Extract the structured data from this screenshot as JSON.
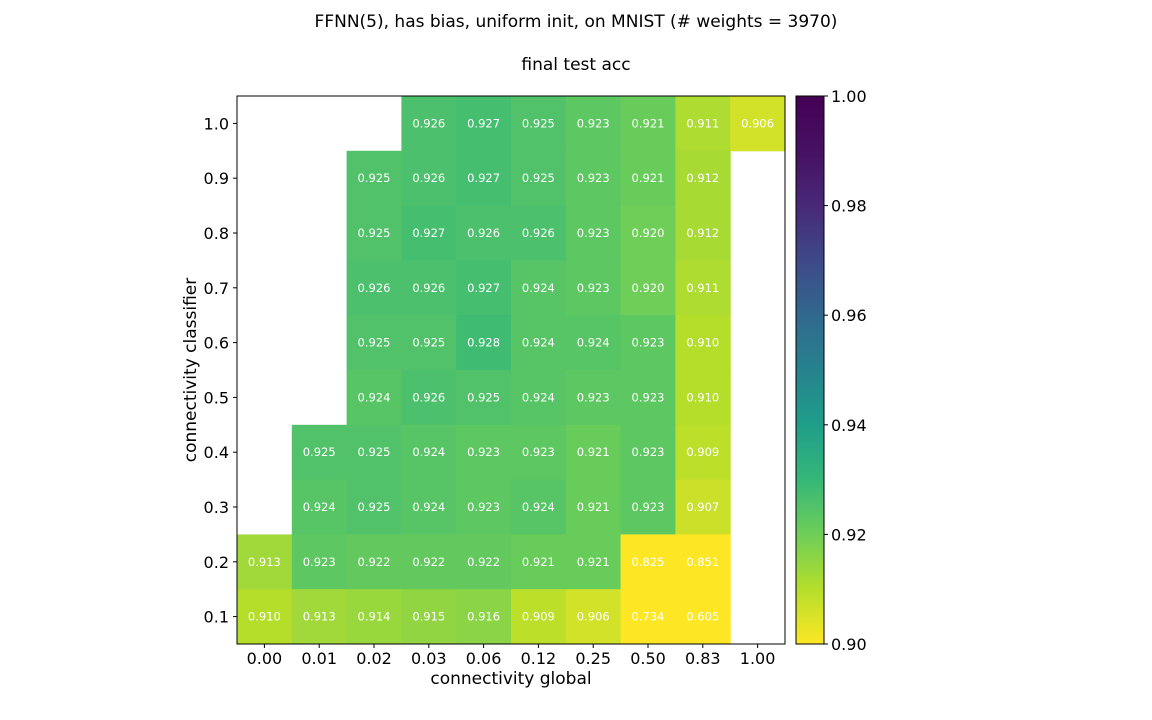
{
  "chart_data": {
    "type": "heatmap",
    "title": "FFNN(5), has bias, uniform init, on MNIST   (# weights = 3970)",
    "subtitle": "final test acc",
    "xlabel": "connectivity global",
    "ylabel": "connectivity classifier",
    "x_categories": [
      "0.00",
      "0.01",
      "0.02",
      "0.03",
      "0.06",
      "0.12",
      "0.25",
      "0.50",
      "0.83",
      "1.00"
    ],
    "y_categories": [
      "1.0",
      "0.9",
      "0.8",
      "0.7",
      "0.6",
      "0.5",
      "0.4",
      "0.3",
      "0.2",
      "0.1"
    ],
    "values": [
      [
        null,
        null,
        null,
        0.926,
        0.927,
        0.925,
        0.923,
        0.921,
        0.911,
        0.906
      ],
      [
        null,
        null,
        0.925,
        0.926,
        0.927,
        0.925,
        0.923,
        0.921,
        0.912,
        null
      ],
      [
        null,
        null,
        0.925,
        0.927,
        0.926,
        0.926,
        0.923,
        0.92,
        0.912,
        null
      ],
      [
        null,
        null,
        0.926,
        0.926,
        0.927,
        0.924,
        0.923,
        0.92,
        0.911,
        null
      ],
      [
        null,
        null,
        0.925,
        0.925,
        0.928,
        0.924,
        0.924,
        0.923,
        0.91,
        null
      ],
      [
        null,
        null,
        0.924,
        0.926,
        0.925,
        0.924,
        0.923,
        0.923,
        0.91,
        null
      ],
      [
        null,
        0.925,
        0.925,
        0.924,
        0.923,
        0.923,
        0.921,
        0.923,
        0.909,
        null
      ],
      [
        null,
        0.924,
        0.925,
        0.924,
        0.923,
        0.924,
        0.921,
        0.923,
        0.907,
        null
      ],
      [
        0.913,
        0.923,
        0.922,
        0.922,
        0.922,
        0.921,
        0.921,
        0.825,
        0.851,
        null
      ],
      [
        0.91,
        0.913,
        0.914,
        0.915,
        0.916,
        0.909,
        0.906,
        0.734,
        0.605,
        null
      ]
    ],
    "colorbar": {
      "colormap": "viridis_r",
      "range": [
        0.9,
        1.0
      ],
      "ticks": [
        "0.90",
        "0.92",
        "0.94",
        "0.96",
        "0.98",
        "1.00"
      ]
    },
    "grid": false
  }
}
